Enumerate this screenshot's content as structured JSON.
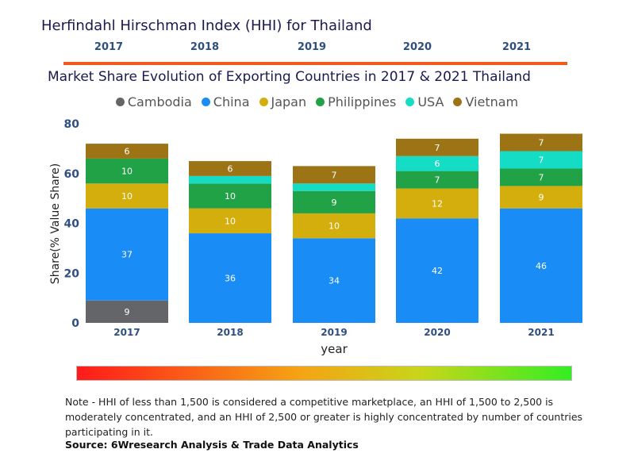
{
  "header": {
    "title": "Herfindahl Hirschman Index (HHI) for Thailand",
    "years": [
      "2017",
      "2018",
      "2019",
      "2020",
      "2021"
    ]
  },
  "chart_data": {
    "type": "bar",
    "stacked": true,
    "title": "Market Share Evolution of Exporting Countries in 2017 & 2021 Thailand",
    "xlabel": "year",
    "ylabel": "Share(% Value Share)",
    "ylim": [
      0,
      80
    ],
    "yticks": [
      "0",
      "20",
      "40",
      "60",
      "80"
    ],
    "categories": [
      "2017",
      "2018",
      "2019",
      "2020",
      "2021"
    ],
    "legend_position": "top",
    "series": [
      {
        "name": "Cambodia",
        "color": "#636569",
        "values": [
          9,
          0,
          0,
          0,
          0
        ],
        "labels": [
          "9",
          "",
          "",
          "",
          ""
        ]
      },
      {
        "name": "China",
        "color": "#1a8cf5",
        "values": [
          37,
          36,
          34,
          42,
          46
        ],
        "labels": [
          "37",
          "36",
          "34",
          "42",
          "46"
        ]
      },
      {
        "name": "Japan",
        "color": "#d4ae0c",
        "values": [
          10,
          10,
          10,
          12,
          9
        ],
        "labels": [
          "10",
          "10",
          "10",
          "12",
          "9"
        ]
      },
      {
        "name": "Philippines",
        "color": "#22a247",
        "values": [
          10,
          10,
          9,
          7,
          7
        ],
        "labels": [
          "10",
          "10",
          "9",
          "7",
          "7"
        ]
      },
      {
        "name": "USA",
        "color": "#15dcc5",
        "values": [
          0,
          3,
          3,
          6,
          7
        ],
        "labels": [
          "",
          "",
          "",
          "6",
          "7"
        ]
      },
      {
        "name": "Vietnam",
        "color": "#9c7416",
        "values": [
          6,
          6,
          7,
          7,
          7
        ],
        "labels": [
          "6",
          "6",
          "7",
          "7",
          "7"
        ]
      }
    ]
  },
  "footer": {
    "note": "Note - HHI of less than 1,500 is considered a competitive marketplace, an HHI of 1,500 to 2,500 is moderately concentrated, and an HHI of 2,500 or greater is highly concentrated by number of countries participating in it.",
    "source": "Source: 6Wresearch Analysis & Trade Data Analytics"
  },
  "colors": {
    "accent": "#f05a1a",
    "title": "#1a1a4e",
    "year_strip": "#2f4f80"
  }
}
